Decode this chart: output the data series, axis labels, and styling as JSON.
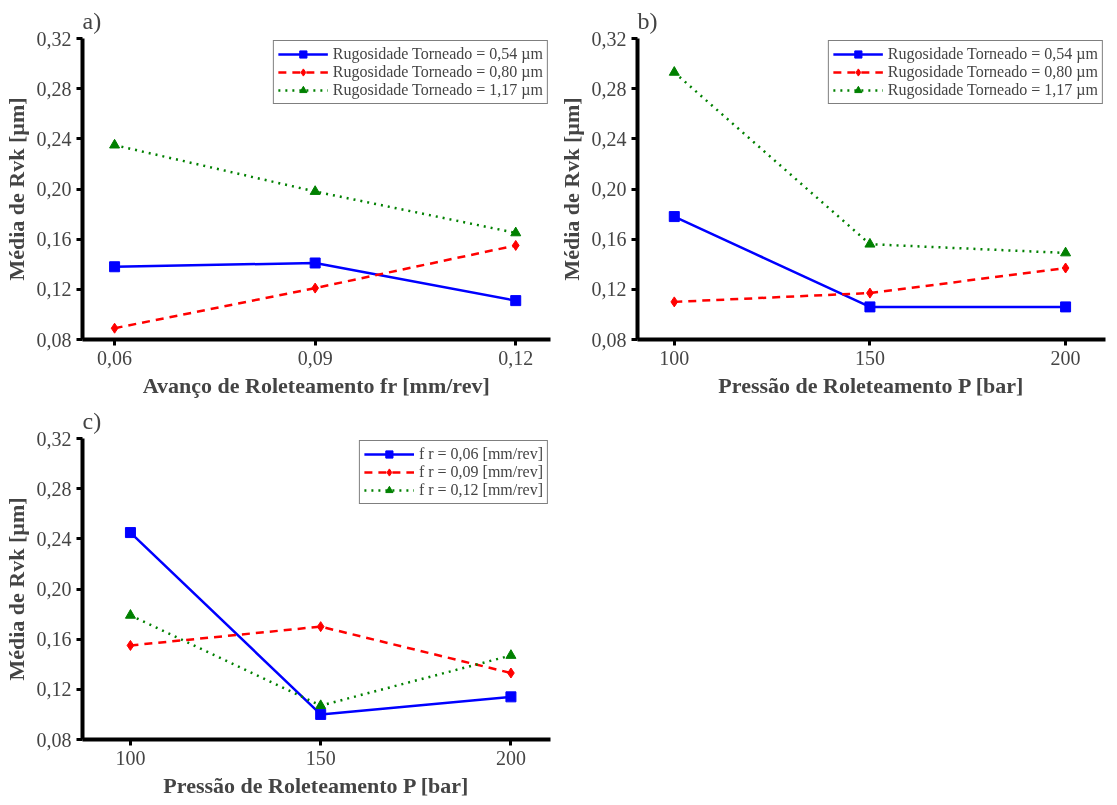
{
  "chart_data": [
    {
      "type": "line",
      "title": "a)",
      "xlabel": "Avanço de Roleteamento fr [mm/rev]",
      "ylabel": "Média de Rvk [µm]",
      "x": [
        0.06,
        0.09,
        0.12
      ],
      "xlim": [
        0.0552,
        0.1252
      ],
      "xticks": [
        {
          "value": 0.06,
          "label": "0,06"
        },
        {
          "value": 0.09,
          "label": "0,09"
        },
        {
          "value": 0.12,
          "label": "0,12"
        }
      ],
      "ylim": [
        0.08,
        0.32
      ],
      "yticks": [
        {
          "value": 0.08,
          "label": "0,08"
        },
        {
          "value": 0.12,
          "label": "0,12"
        },
        {
          "value": 0.16,
          "label": "0,16"
        },
        {
          "value": 0.2,
          "label": "0,20"
        },
        {
          "value": 0.24,
          "label": "0,24"
        },
        {
          "value": 0.28,
          "label": "0,28"
        },
        {
          "value": 0.32,
          "label": "0,32"
        }
      ],
      "grid": false,
      "legend": "top right",
      "series": [
        {
          "name": "Rugosidade Torneado = 0,54 µm",
          "color": "#0000ff",
          "values": [
            0.138,
            0.141,
            0.111
          ],
          "marker": "square",
          "line_style": "solid"
        },
        {
          "name": "Rugosidade Torneado = 0,80 µm",
          "color": "#ff0000",
          "values": [
            0.089,
            0.121,
            0.155
          ],
          "marker": "diamond",
          "line_style": "dashed"
        },
        {
          "name": "Rugosidade Torneado = 1,17 µm",
          "color": "#008000",
          "values": [
            0.235,
            0.198,
            0.165
          ],
          "marker": "triangle",
          "line_style": "dotted"
        }
      ]
    },
    {
      "type": "line",
      "title": "b)",
      "xlabel": "Pressão de Roleteamento P [bar]",
      "ylabel": "Média de Rvk [µm]",
      "x": [
        100,
        150,
        200
      ],
      "xlim": [
        90.6,
        210.2
      ],
      "xticks": [
        100,
        150,
        200
      ],
      "ylim": [
        0.08,
        0.32
      ],
      "yticks": [
        {
          "value": 0.08,
          "label": "0,08"
        },
        {
          "value": 0.12,
          "label": "0,12"
        },
        {
          "value": 0.16,
          "label": "0,16"
        },
        {
          "value": 0.2,
          "label": "0,20"
        },
        {
          "value": 0.24,
          "label": "0,24"
        },
        {
          "value": 0.28,
          "label": "0,28"
        },
        {
          "value": 0.32,
          "label": "0,32"
        }
      ],
      "grid": false,
      "legend": "top right",
      "series": [
        {
          "name": "Rugosidade Torneado = 0,54 µm",
          "color": "#0000ff",
          "values": [
            0.178,
            0.106,
            0.106
          ],
          "marker": "square",
          "line_style": "solid"
        },
        {
          "name": "Rugosidade Torneado = 0,80 µm",
          "color": "#ff0000",
          "values": [
            0.11,
            0.117,
            0.137
          ],
          "marker": "diamond",
          "line_style": "dashed"
        },
        {
          "name": "Rugosidade Torneado = 1,17 µm",
          "color": "#008000",
          "values": [
            0.293,
            0.156,
            0.149
          ],
          "marker": "triangle",
          "line_style": "dotted"
        }
      ]
    },
    {
      "type": "line",
      "title": "c)",
      "xlabel": "Pressão de Roleteamento P [bar]",
      "ylabel": "Média de Rvk [µm]",
      "x": [
        100,
        150,
        200
      ],
      "xlim": [
        87.4,
        210.4
      ],
      "xticks": [
        100,
        150,
        200
      ],
      "ylim": [
        0.08,
        0.32
      ],
      "yticks": [
        {
          "value": 0.08,
          "label": "0,08"
        },
        {
          "value": 0.12,
          "label": "0,12"
        },
        {
          "value": 0.16,
          "label": "0,16"
        },
        {
          "value": 0.2,
          "label": "0,20"
        },
        {
          "value": 0.24,
          "label": "0,24"
        },
        {
          "value": 0.28,
          "label": "0,28"
        },
        {
          "value": 0.32,
          "label": "0,32"
        }
      ],
      "grid": false,
      "legend": "top right",
      "series": [
        {
          "name": "f r = 0,06 [mm/rev]",
          "color": "#0000ff",
          "values": [
            0.245,
            0.1,
            0.114
          ],
          "marker": "square",
          "line_style": "solid"
        },
        {
          "name": "f r = 0,09 [mm/rev]",
          "color": "#ff0000",
          "values": [
            0.155,
            0.17,
            0.133
          ],
          "marker": "diamond",
          "line_style": "dashed"
        },
        {
          "name": "f r = 0,12 [mm/rev]",
          "color": "#008000",
          "values": [
            0.179,
            0.107,
            0.147
          ],
          "marker": "triangle",
          "line_style": "dotted"
        }
      ]
    }
  ]
}
